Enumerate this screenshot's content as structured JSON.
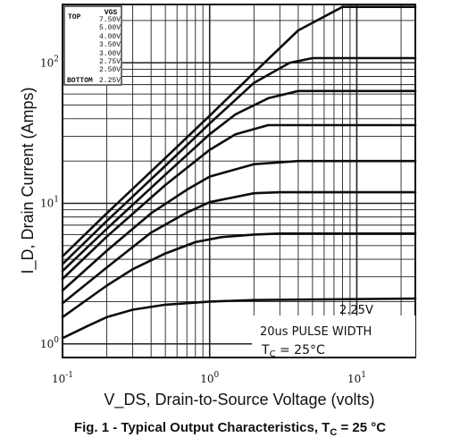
{
  "chart_data": {
    "type": "line",
    "x_scale": "log",
    "y_scale": "log",
    "xlim": [
      0.1,
      25
    ],
    "ylim": [
      0.8,
      260
    ],
    "grid": true,
    "ylabel": "I_D, Drain Current (Amps)",
    "xlabel": "V_DS, Drain-to-Source Voltage (volts)",
    "x_ticks": [
      {
        "value": 0.1,
        "base": "10",
        "exp": "-1"
      },
      {
        "value": 1,
        "base": "10",
        "exp": "0"
      },
      {
        "value": 10,
        "base": "10",
        "exp": "1"
      }
    ],
    "y_ticks": [
      {
        "value": 1,
        "base": "10",
        "exp": "0"
      },
      {
        "value": 10,
        "base": "10",
        "exp": "1"
      },
      {
        "value": 100,
        "base": "10",
        "exp": "2"
      }
    ],
    "legend": {
      "placement": "top-left",
      "header": "VGS",
      "top_label": "TOP",
      "bottom_label": "BOTTOM",
      "values": [
        "7.50V",
        "5.00V",
        "4.00V",
        "3.50V",
        "3.00V",
        "2.75V",
        "2.50V",
        "2.25V"
      ]
    },
    "series": [
      {
        "name": "7.50V",
        "x": [
          0.1,
          0.2,
          0.5,
          1,
          2,
          4,
          8,
          25
        ],
        "y": [
          4.2,
          8.5,
          21,
          42,
          85,
          170,
          250,
          250
        ]
      },
      {
        "name": "5.00V",
        "x": [
          0.1,
          0.2,
          0.5,
          1,
          2,
          3.5,
          5,
          25
        ],
        "y": [
          3.7,
          7.5,
          18.5,
          37,
          72,
          100,
          108,
          108
        ]
      },
      {
        "name": "4.00V",
        "x": [
          0.1,
          0.2,
          0.5,
          1,
          1.5,
          2.5,
          4,
          25
        ],
        "y": [
          3.3,
          6.6,
          16,
          31,
          43,
          56,
          63,
          63
        ]
      },
      {
        "name": "3.50V",
        "x": [
          0.1,
          0.2,
          0.5,
          1,
          1.5,
          2.5,
          25
        ],
        "y": [
          2.9,
          5.8,
          13.5,
          24,
          31,
          36,
          36
        ]
      },
      {
        "name": "3.00V",
        "x": [
          0.1,
          0.2,
          0.4,
          0.7,
          1,
          2,
          4,
          25
        ],
        "y": [
          2.4,
          4.6,
          8.5,
          12.5,
          15.5,
          19,
          20,
          20
        ]
      },
      {
        "name": "2.75V",
        "x": [
          0.1,
          0.2,
          0.4,
          0.7,
          1,
          2,
          3,
          25
        ],
        "y": [
          1.95,
          3.5,
          6.2,
          8.6,
          10.2,
          11.8,
          12,
          12
        ]
      },
      {
        "name": "2.50V",
        "x": [
          0.1,
          0.2,
          0.3,
          0.5,
          0.8,
          1.2,
          2,
          3,
          25
        ],
        "y": [
          1.55,
          2.6,
          3.4,
          4.4,
          5.3,
          5.75,
          6.0,
          6.1,
          6.1
        ]
      },
      {
        "name": "2.25V",
        "x": [
          0.1,
          0.15,
          0.2,
          0.3,
          0.5,
          1,
          2,
          25
        ],
        "y": [
          1.1,
          1.35,
          1.55,
          1.75,
          1.9,
          2.0,
          2.05,
          2.1
        ]
      }
    ],
    "annotations": {
      "curve_label": "2.25V",
      "pulse_width": "20us PULSE WIDTH",
      "tc_prefix": "T",
      "tc_sub": "C",
      "tc_value": " = 25°C"
    },
    "caption": {
      "prefix": "Fig. 1 - Typical Output Characteristics, T",
      "sub": "C",
      "suffix": " = 25 °C"
    }
  }
}
